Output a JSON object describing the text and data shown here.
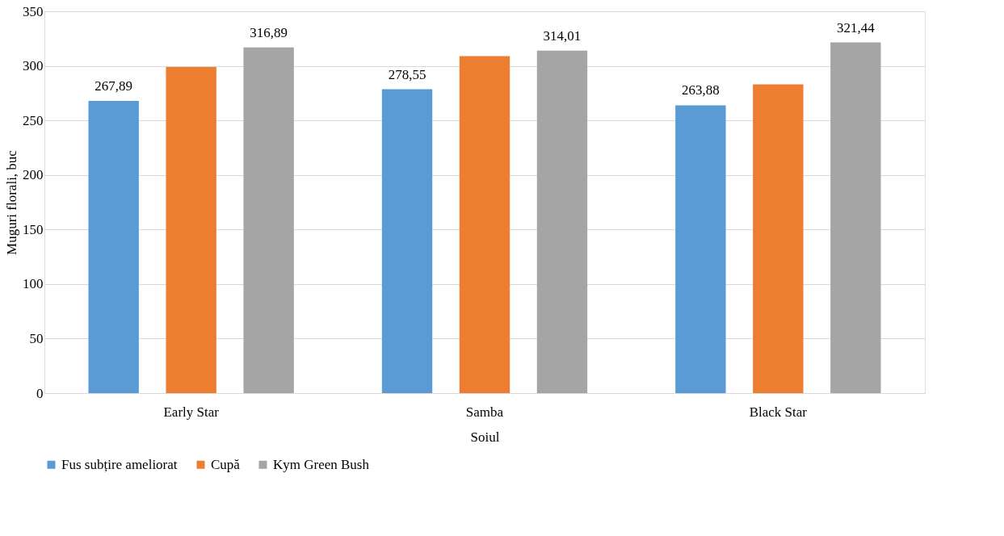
{
  "chart_data": {
    "type": "bar",
    "xlabel": "Soiul",
    "ylabel": "Muguri florali, buc",
    "categories": [
      "Early Star",
      "Samba",
      "Black Star"
    ],
    "series": [
      {
        "name": "Fus subțire ameliorat",
        "color": "#5b9bd5",
        "values": [
          267.89,
          278.55,
          263.88
        ],
        "value_labels": [
          "267,89",
          "278,55",
          "263,88"
        ]
      },
      {
        "name": "Cupă",
        "color": "#ed7d31",
        "values": [
          299,
          309,
          283
        ]
      },
      {
        "name": "Kym Green Bush",
        "color": "#a5a5a5",
        "values": [
          316.89,
          314.01,
          321.44
        ],
        "value_labels": [
          "316,89",
          "314,01",
          "321,44"
        ]
      }
    ],
    "ylim": [
      0,
      350
    ],
    "yticks": [
      0,
      50,
      100,
      150,
      200,
      250,
      300,
      350
    ],
    "grid": "y",
    "legend": "bottom"
  }
}
